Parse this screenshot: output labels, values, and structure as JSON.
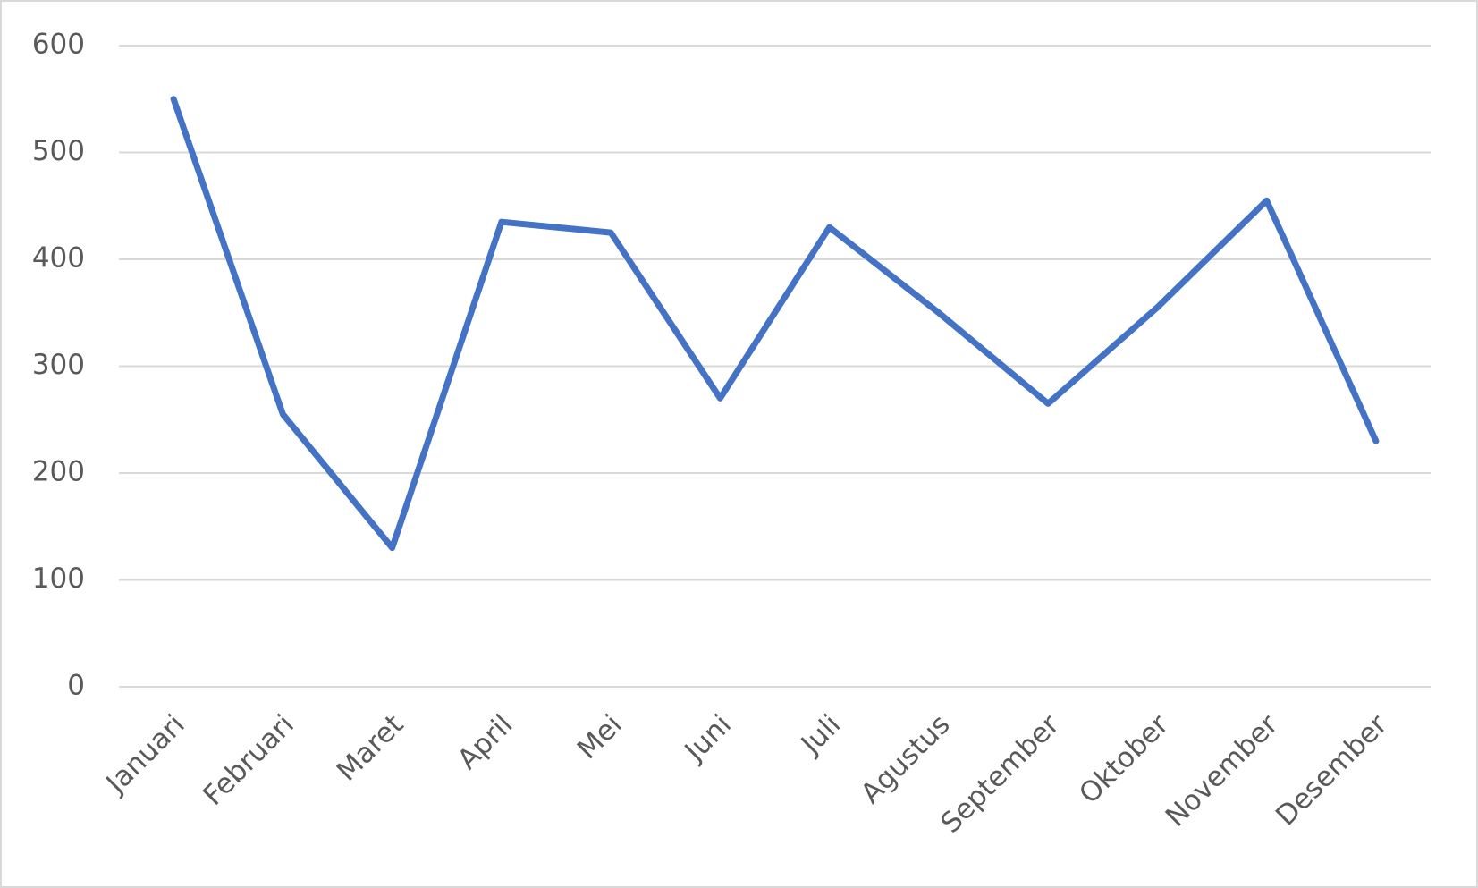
{
  "chart_data": {
    "type": "line",
    "categories": [
      "Januari",
      "Februari",
      "Maret",
      "April",
      "Mei",
      "Juni",
      "Juli",
      "Agustus",
      "September",
      "Oktober",
      "November",
      "Desember"
    ],
    "values": [
      550,
      255,
      130,
      435,
      425,
      270,
      430,
      350,
      265,
      355,
      455,
      230
    ],
    "color": "#4472c4",
    "ylim": [
      0,
      600
    ],
    "yticks": [
      0,
      100,
      200,
      300,
      400,
      500,
      600
    ],
    "grid": true
  }
}
